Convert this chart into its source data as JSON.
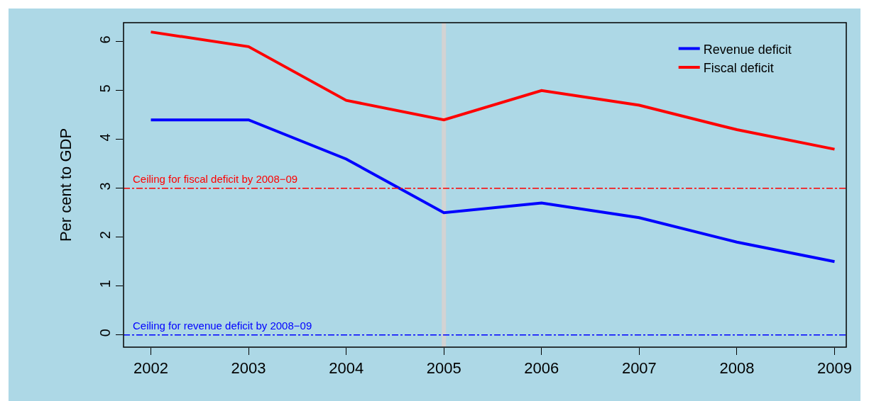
{
  "chart_data": {
    "type": "line",
    "ylabel": "Per cent to GDP",
    "x": [
      2002,
      2003,
      2004,
      2005,
      2006,
      2007,
      2008,
      2009
    ],
    "series": [
      {
        "name": "Revenue deficit",
        "color": "#0000ff",
        "values": [
          4.4,
          4.4,
          3.6,
          2.5,
          2.7,
          2.4,
          1.9,
          1.5
        ]
      },
      {
        "name": "Fiscal deficit",
        "color": "#ff0000",
        "values": [
          6.2,
          5.9,
          4.8,
          4.4,
          5.0,
          4.7,
          4.2,
          3.8
        ]
      }
    ],
    "xlim": [
      2001.72,
      2009.12
    ],
    "xticks": [
      2002,
      2003,
      2004,
      2005,
      2006,
      2007,
      2008,
      2009
    ],
    "ylim": [
      -0.25,
      6.39
    ],
    "yticks": [
      0,
      1,
      2,
      3,
      4,
      5,
      6
    ],
    "ref_lines": [
      {
        "axis": "y",
        "value": 3,
        "label": "Ceiling for fiscal deficit by 2008−09",
        "color": "#ff0000",
        "line_style": "dashed"
      },
      {
        "axis": "y",
        "value": 0,
        "label": "Ceiling for revenue deficit by 2008−09",
        "color": "#0000ff",
        "line_style": "dashed"
      },
      {
        "axis": "x",
        "value": 2005,
        "label": null,
        "color": "#d3d3d3",
        "line_style": "solid"
      }
    ],
    "legend": "top right",
    "marker": "none",
    "line_style": "solid"
  }
}
